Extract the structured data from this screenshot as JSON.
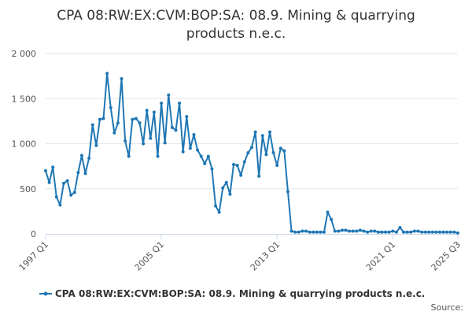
{
  "chart_data": {
    "type": "line",
    "title_line1": "CPA 08:RW:EX:CVM:BOP:SA: 08.9. Mining & quarrying",
    "title_line2": "products n.e.c.",
    "xlabel": "",
    "ylabel": "",
    "ylim": [
      0,
      2000
    ],
    "y_ticks": [
      0,
      500,
      1000,
      1500,
      2000
    ],
    "y_tick_labels": [
      "0",
      "500",
      "1 000",
      "1 500",
      "2 000"
    ],
    "x_tick_labels": [
      "1997 Q1",
      "2005 Q1",
      "2013 Q1",
      "2021 Q1",
      "2025 Q3"
    ],
    "x_tick_positions": [
      0,
      32,
      64,
      96,
      114
    ],
    "grid": true,
    "legend_position": "bottom-center",
    "series": [
      {
        "name": "CPA 08:RW:EX:CVM:BOP:SA: 08.9. Mining & quarrying products n.e.c.",
        "color": "#1f77b4",
        "values": [
          700,
          570,
          740,
          410,
          320,
          560,
          590,
          430,
          460,
          680,
          870,
          670,
          840,
          1210,
          980,
          1270,
          1280,
          1780,
          1400,
          1120,
          1230,
          1720,
          1030,
          860,
          1270,
          1280,
          1230,
          1000,
          1370,
          1060,
          1350,
          860,
          1450,
          1010,
          1540,
          1180,
          1150,
          1450,
          910,
          1300,
          950,
          1100,
          930,
          860,
          780,
          860,
          720,
          310,
          240,
          510,
          570,
          440,
          770,
          760,
          650,
          800,
          900,
          960,
          1130,
          640,
          1090,
          880,
          1130,
          900,
          760,
          950,
          920,
          470,
          30,
          20,
          20,
          30,
          30,
          20,
          20,
          20,
          20,
          20,
          240,
          160,
          30,
          30,
          40,
          40,
          30,
          30,
          30,
          40,
          30,
          20,
          30,
          30,
          20,
          20,
          20,
          20,
          30,
          20,
          70,
          20,
          20,
          20,
          30,
          30,
          20,
          20,
          20,
          20,
          20,
          20,
          20,
          20,
          20,
          20,
          10
        ]
      }
    ],
    "source_label": "Source:"
  }
}
